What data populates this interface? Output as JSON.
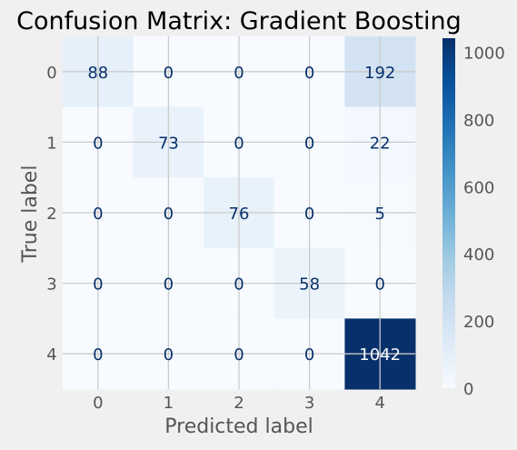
{
  "chart_data": {
    "type": "heatmap",
    "title": "Confusion Matrix: Gradient Boosting",
    "xlabel": "Predicted label",
    "ylabel": "True label",
    "x_categories": [
      "0",
      "1",
      "2",
      "3",
      "4"
    ],
    "y_categories": [
      "0",
      "1",
      "2",
      "3",
      "4"
    ],
    "values": [
      [
        88,
        0,
        0,
        0,
        192
      ],
      [
        0,
        73,
        0,
        0,
        22
      ],
      [
        0,
        0,
        76,
        0,
        5
      ],
      [
        0,
        0,
        0,
        58,
        0
      ],
      [
        0,
        0,
        0,
        0,
        1042
      ]
    ],
    "colormap": "Blues",
    "colorbar": {
      "range": [
        0,
        1042
      ],
      "ticks": [
        0,
        200,
        400,
        600,
        800,
        1000
      ]
    },
    "grid": true,
    "colors": {
      "background": "#f0f0f0",
      "text_dark": "#08306b",
      "text_light": "#f7fbff",
      "label": "#555555"
    }
  }
}
